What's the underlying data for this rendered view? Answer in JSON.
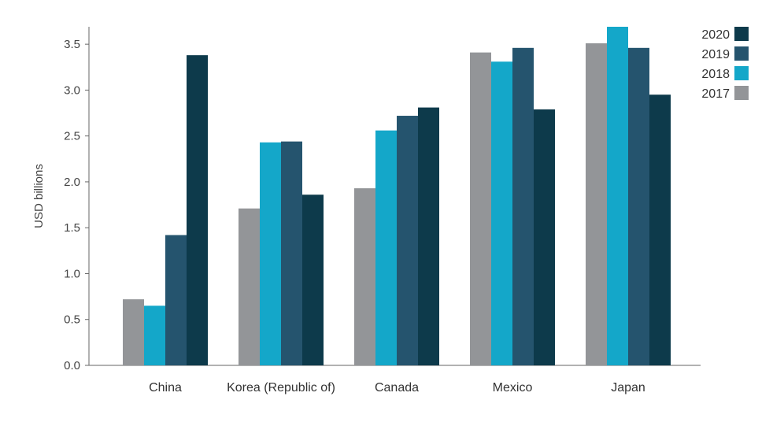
{
  "chart_data": {
    "type": "bar",
    "categories": [
      "China",
      "Korea (Republic of)",
      "Canada",
      "Mexico",
      "Japan"
    ],
    "series": [
      {
        "name": "2017",
        "color": "#939598",
        "values": [
          0.72,
          1.71,
          1.93,
          3.41,
          3.51
        ]
      },
      {
        "name": "2018",
        "color": "#14a7c9",
        "values": [
          0.65,
          2.43,
          2.56,
          3.31,
          3.69
        ]
      },
      {
        "name": "2019",
        "color": "#25546e",
        "values": [
          1.42,
          2.44,
          2.72,
          3.46,
          3.46
        ]
      },
      {
        "name": "2020",
        "color": "#0d3a4b",
        "values": [
          3.38,
          1.86,
          2.81,
          2.79,
          2.95
        ]
      }
    ],
    "ylabel": "USD billions",
    "xlabel": "",
    "ylim": [
      0,
      3.69
    ],
    "yticks": [
      "0.0",
      "0.5",
      "1.0",
      "1.5",
      "2.0",
      "2.5",
      "3.0",
      "3.5"
    ],
    "ytick_values": [
      0,
      0.5,
      1.0,
      1.5,
      2.0,
      2.5,
      3.0,
      3.5
    ],
    "legend": [
      "2020",
      "2019",
      "2018",
      "2017"
    ],
    "legend_position": "top-right",
    "grid": false
  }
}
